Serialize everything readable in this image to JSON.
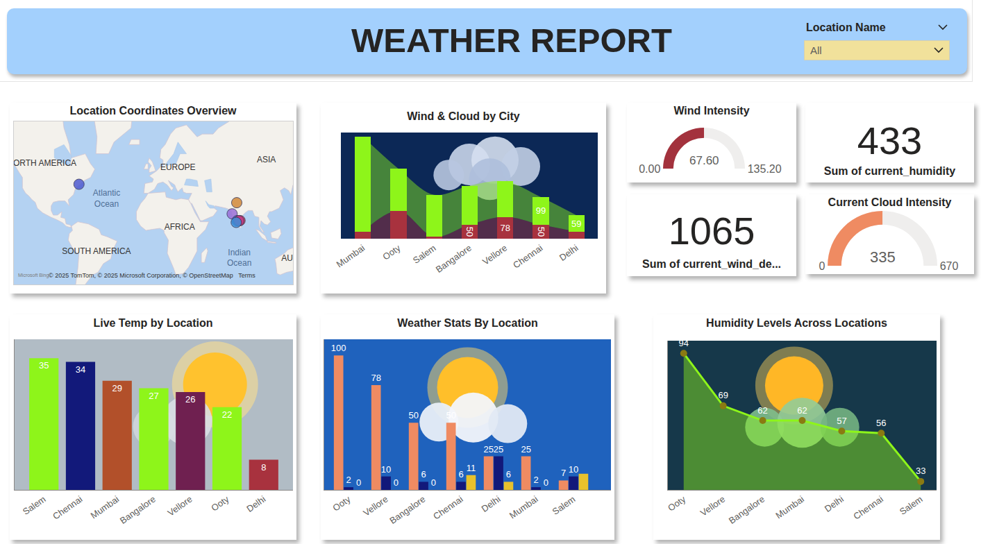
{
  "header": {
    "title": "WEATHER REPORT",
    "filter_label": "Location Name",
    "filter_value": "All"
  },
  "chart_data": [
    {
      "type": "map",
      "title": "Location Coordinates Overview",
      "lat": [
        42.5,
        19.1,
        28.6,
        13.0,
        13.1,
        12.9,
        11.4
      ],
      "lon": [
        -70.9,
        72.9,
        77.2,
        77.6,
        80.3,
        79.1,
        76.7
      ],
      "colors": [
        "#4f5bd0",
        "#9a6fd8",
        "#d38a3a",
        "#3a6fe0",
        "#e0344f",
        "#c43a8a",
        "#3e8fd8"
      ],
      "marker": "circle",
      "xlim": [
        -132,
        130
      ],
      "ylim": [
        -42,
        72
      ],
      "tick_labels": false,
      "continent_labels": [
        {
          "text": "ORTH AMERICA",
          "lat": 55,
          "lon": -103
        },
        {
          "text": "EUROPE",
          "lat": 52.6,
          "lon": 22
        },
        {
          "text": "ASIA",
          "lat": 56.7,
          "lon": 105
        },
        {
          "text": "AFRICA",
          "lat": 6.6,
          "lon": 23.6
        },
        {
          "text": "SOUTH AMERICA",
          "lat": -15.9,
          "lon": -54.5
        },
        {
          "text": "AU",
          "lat": -22,
          "lon": 124.5
        }
      ],
      "ocean_labels": [
        {
          "text": "Atlantic Ocean",
          "lat": 31.6,
          "lon": -45
        },
        {
          "text": "Indian Ocean",
          "lat": -21.5,
          "lon": 79.6
        }
      ],
      "attribution": "© 2025 TomTom, © 2025 Microsoft Corporation, © OpenStreetMap",
      "terms": "Terms",
      "logo": "Microsoft Bing"
    },
    {
      "type": "ribbon",
      "title": "Wind & Cloud by City",
      "categories": [
        "Mumbai",
        "Ooty",
        "Salem",
        "Bangalore",
        "Vellore",
        "Chennai",
        "Delhi"
      ],
      "series": [
        {
          "color": "#a8323e",
          "values": [
            25,
            100,
            7,
            50,
            78,
            50,
            25
          ],
          "value_labels": [
            null,
            null,
            null,
            "50",
            "78",
            "50",
            null
          ]
        },
        {
          "color": "#8ef51a",
          "values": [
            340,
            150,
            150,
            140,
            127,
            99,
            59
          ],
          "value_labels": [
            null,
            null,
            null,
            null,
            null,
            "99",
            "59"
          ]
        }
      ],
      "stacked": true,
      "ylim": [
        0,
        380
      ],
      "data_labels": true,
      "tick_labels": "x"
    },
    {
      "type": "gauge",
      "title": "Wind Intensity",
      "values": [
        67.6
      ],
      "value_labels": [
        "67.60"
      ],
      "color": "#a3323d",
      "ylim": [
        0,
        135.2
      ],
      "yticks": [
        {
          "value": 0,
          "label": "0.00"
        },
        {
          "value": 135.2,
          "label": "135.20"
        }
      ]
    },
    {
      "type": "card",
      "values": [
        433
      ],
      "label": "Sum of current_humidity"
    },
    {
      "type": "card",
      "values": [
        1065
      ],
      "label": "Sum of current_wind_de..."
    },
    {
      "type": "gauge",
      "title": "Current Cloud Intensity",
      "values": [
        335
      ],
      "color": "#ef8b62",
      "ylim": [
        0,
        670
      ],
      "yticks": [
        0,
        670
      ]
    },
    {
      "type": "bar",
      "title": "Live Temp by Location",
      "categories": [
        "Salem",
        "Chennai",
        "Mumbai",
        "Bangalore",
        "Vellore",
        "Ooty",
        "Delhi"
      ],
      "values": [
        35,
        34,
        29,
        27,
        26,
        22,
        8
      ],
      "colors": [
        "#8ef51a",
        "#12197a",
        "#b2502a",
        "#8ef51a",
        "#6f2050",
        "#8ef51a",
        "#a8323e"
      ],
      "ylim": [
        0,
        40
      ],
      "data_labels": true,
      "tick_labels": "x"
    },
    {
      "type": "bar",
      "title": "Weather Stats By Location",
      "categories": [
        "Ooty",
        "Vellore",
        "Bangalore",
        "Chennai",
        "Delhi",
        "Mumbai",
        "Salem"
      ],
      "series": [
        {
          "color": "#ef8b62",
          "values": [
            100,
            78,
            50,
            50,
            25,
            25,
            7
          ]
        },
        {
          "color": "#12197a",
          "values": [
            2,
            10,
            6,
            6,
            25,
            2,
            10
          ]
        },
        {
          "color": "#e8c22c",
          "values": [
            0,
            0,
            0,
            11,
            6,
            0,
            12
          ],
          "value_labels": [
            "0",
            "0",
            "0",
            "11",
            "6",
            "0",
            null
          ]
        }
      ],
      "ylim": [
        0,
        112
      ],
      "data_labels": true,
      "tick_labels": "x"
    },
    {
      "type": "area",
      "title": "Humidity Levels Across Locations",
      "categories": [
        "Ooty",
        "Vellore",
        "Bangalore",
        "Mumbai",
        "Delhi",
        "Chennai",
        "Salem"
      ],
      "values": [
        94,
        69,
        62,
        62,
        57,
        56,
        33
      ],
      "color": "#8ef51a",
      "marker": "circle",
      "ylim": [
        29,
        100
      ],
      "data_labels": true,
      "tick_labels": "x"
    }
  ]
}
